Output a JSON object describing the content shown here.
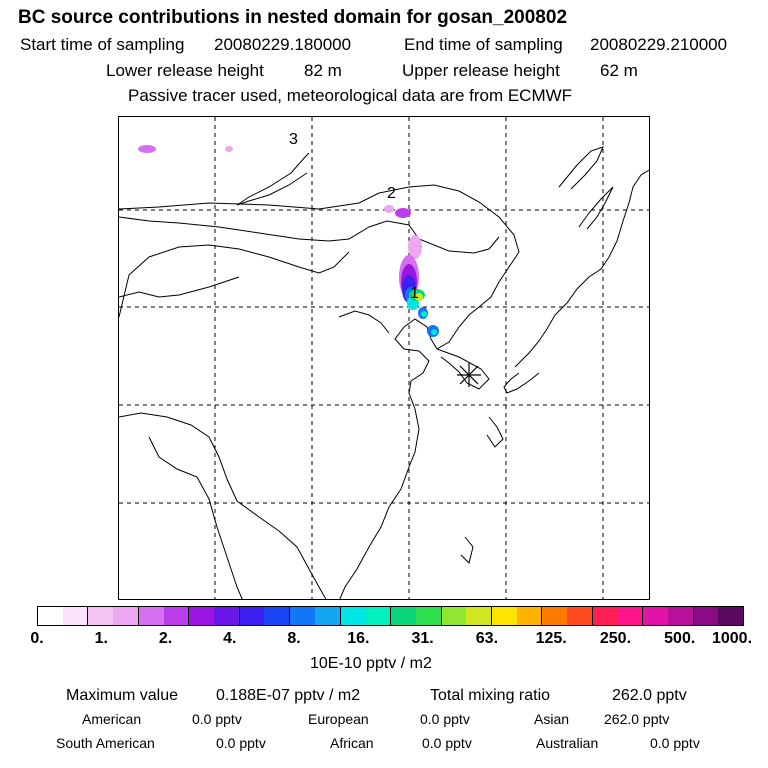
{
  "title": "BC  source contributions in nested domain for gosan_200802",
  "sampling": {
    "start_label": "Start time of sampling",
    "start_value": "20080229.180000",
    "end_label": "End time of sampling",
    "end_value": "20080229.210000"
  },
  "release": {
    "lower_label": "Lower release height",
    "lower_value": "82 m",
    "upper_label": "Upper release height",
    "upper_value": "62 m"
  },
  "model_note": "Passive tracer used, meteorological data are from ECMWF",
  "map": {
    "labels": [
      "1",
      "2",
      "3"
    ],
    "receptor_marker": "asterisk-icon"
  },
  "colorbar": {
    "colors": [
      "#ffffff",
      "#fbe3fb",
      "#f4c4f4",
      "#eca6f2",
      "#d670ef",
      "#bb3cea",
      "#9b15e3",
      "#6a17ea",
      "#3b1fef",
      "#1a45f4",
      "#1177f4",
      "#14a6f2",
      "#00e6e6",
      "#00f0c0",
      "#0bd67a",
      "#30e050",
      "#90e630",
      "#d0e620",
      "#ffe600",
      "#ffb300",
      "#ff7a00",
      "#ff4b1f",
      "#ff1f55",
      "#ff158e",
      "#e014a5",
      "#b80f9c",
      "#8a0c84",
      "#5a0a5e"
    ],
    "tick_labels": [
      "0.",
      "1.",
      "2.",
      "4.",
      "8.",
      "16.",
      "31.",
      "63.",
      "125.",
      "250.",
      "500.",
      "1000."
    ],
    "units": "10E-10 pptv / m2"
  },
  "stats": {
    "max_label": "Maximum value",
    "max_value": "0.188E-07 pptv / m2",
    "total_label": "Total mixing ratio",
    "total_value": "262.0 pptv",
    "regions": [
      {
        "name": "American",
        "value": "0.0 pptv"
      },
      {
        "name": "European",
        "value": "0.0 pptv"
      },
      {
        "name": "Asian",
        "value": "262.0 pptv"
      },
      {
        "name": "South American",
        "value": "0.0 pptv"
      },
      {
        "name": "African",
        "value": "0.0 pptv"
      },
      {
        "name": "Australian",
        "value": "0.0 pptv"
      }
    ]
  }
}
